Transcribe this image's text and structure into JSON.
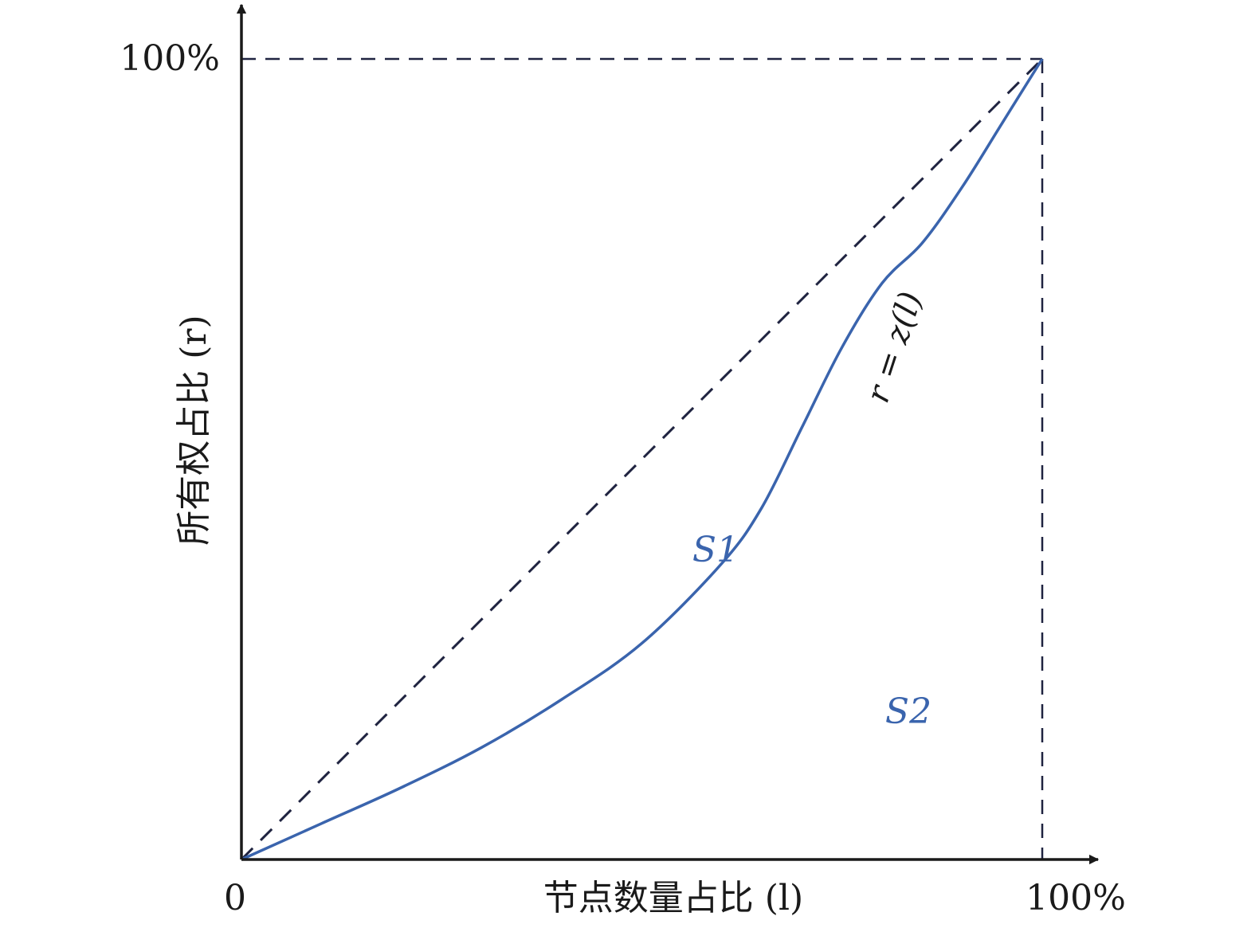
{
  "chart_data": {
    "type": "line",
    "title": "",
    "xlabel": "节点数量占比 (l)",
    "ylabel": "所有权占比 (r)",
    "xlim": [
      0,
      100
    ],
    "ylim": [
      0,
      100
    ],
    "x_tick_labels": [
      "0",
      "100%"
    ],
    "y_tick_labels": [
      "100%"
    ],
    "grid": false,
    "series": [
      {
        "line_style": "dashed",
        "color": "#1f2340",
        "x": [
          0,
          100
        ],
        "y": [
          0,
          100
        ]
      },
      {
        "line_style": "solid",
        "color": "#3a64ad",
        "x": [
          0,
          10,
          20,
          30,
          40,
          50,
          60,
          65,
          70,
          75,
          80,
          85,
          90,
          95,
          100
        ],
        "y": [
          0,
          4.5,
          9,
          14,
          20,
          27,
          37,
          44,
          54,
          64,
          72,
          77,
          84,
          92,
          100
        ]
      }
    ],
    "reference_lines": [
      {
        "orientation": "horizontal",
        "value": 100,
        "line_style": "dashed"
      },
      {
        "orientation": "vertical",
        "value": 100,
        "line_style": "dashed"
      }
    ],
    "annotations": {
      "curve_label": "r = z(l)",
      "region_s1": "S1",
      "region_s2": "S2"
    },
    "colors": {
      "axis": "#1a1a1a",
      "dashed": "#1f2340",
      "curve": "#3a64ad"
    }
  }
}
